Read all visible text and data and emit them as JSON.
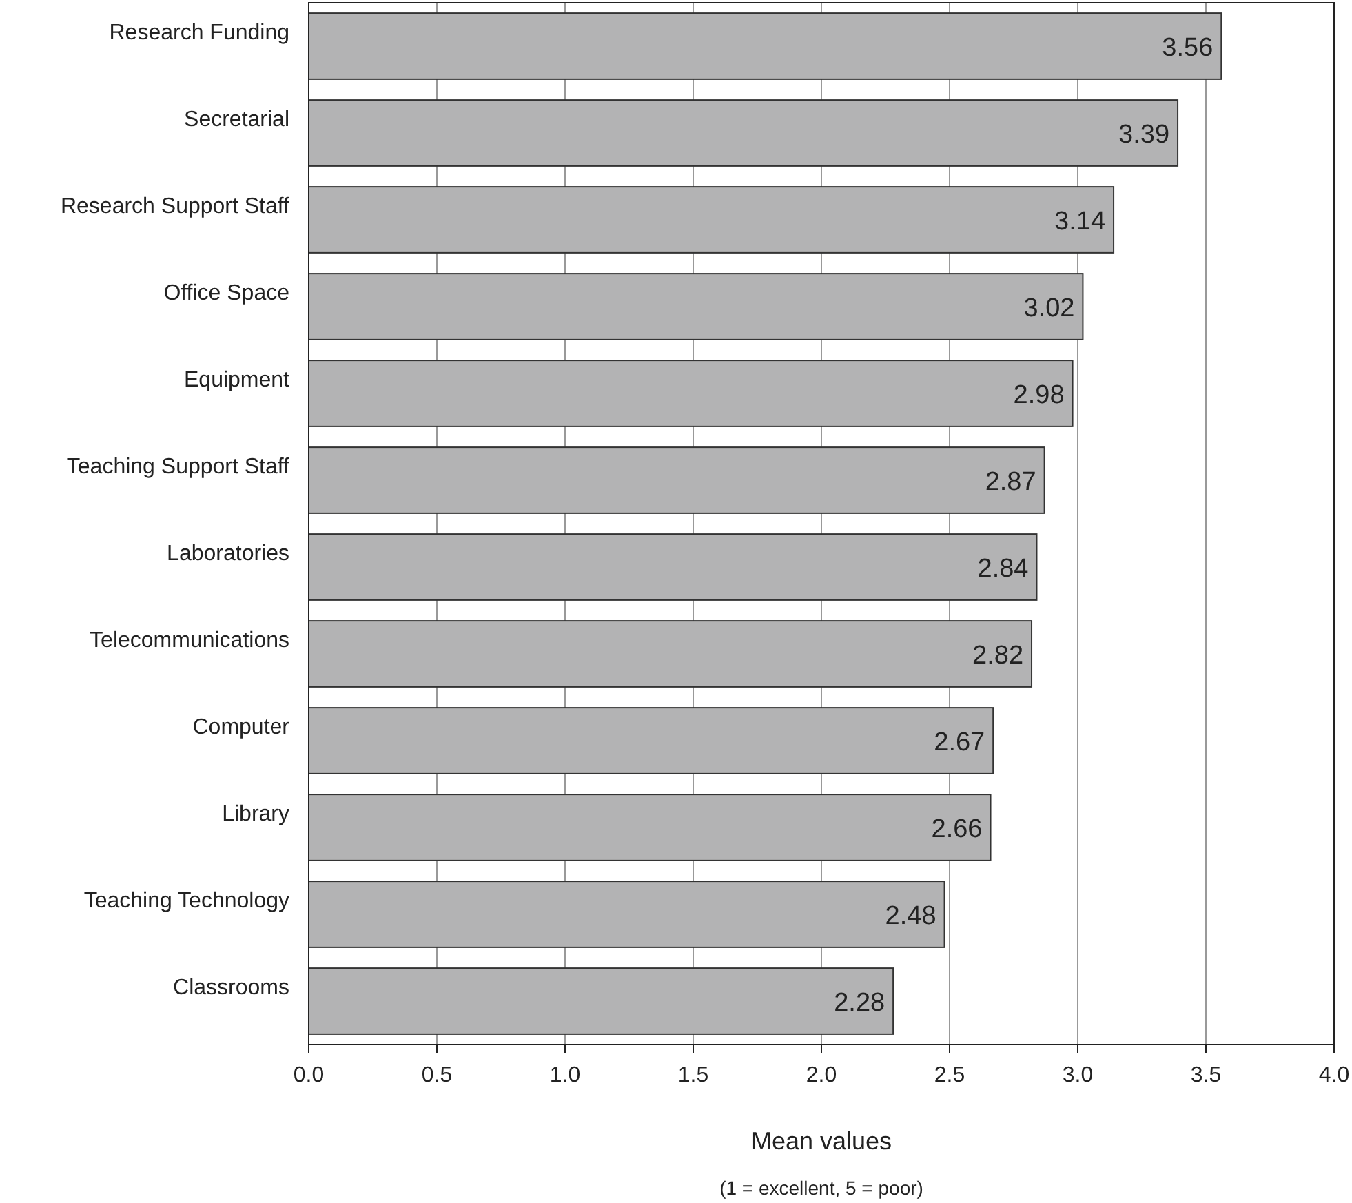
{
  "chart_data": {
    "type": "bar",
    "orientation": "horizontal",
    "categories": [
      "Research Funding",
      "Secretarial",
      "Research Support Staff",
      "Office Space",
      "Equipment",
      "Teaching Support Staff",
      "Laboratories",
      "Telecommunications",
      "Computer",
      "Library",
      "Teaching Technology",
      "Classrooms"
    ],
    "values": [
      3.56,
      3.39,
      3.14,
      3.02,
      2.98,
      2.87,
      2.84,
      2.82,
      2.67,
      2.66,
      2.48,
      2.28
    ],
    "color": "#b3b3b4",
    "data_labels": true,
    "xlim": [
      0,
      4
    ],
    "xticks": [
      {
        "value": 0,
        "label": "0.0"
      },
      {
        "value": 0.5,
        "label": "0.5"
      },
      {
        "value": 1,
        "label": "1.0"
      },
      {
        "value": 1.5,
        "label": "1.5"
      },
      {
        "value": 2,
        "label": "2.0"
      },
      {
        "value": 2.5,
        "label": "2.5"
      },
      {
        "value": 3,
        "label": "3.0"
      },
      {
        "value": 3.5,
        "label": "3.5"
      },
      {
        "value": 4,
        "label": "4.0"
      }
    ],
    "grid": "x",
    "xlabel": "Mean values",
    "annotations": [
      "(1 = excellent,  5 = poor)"
    ]
  }
}
